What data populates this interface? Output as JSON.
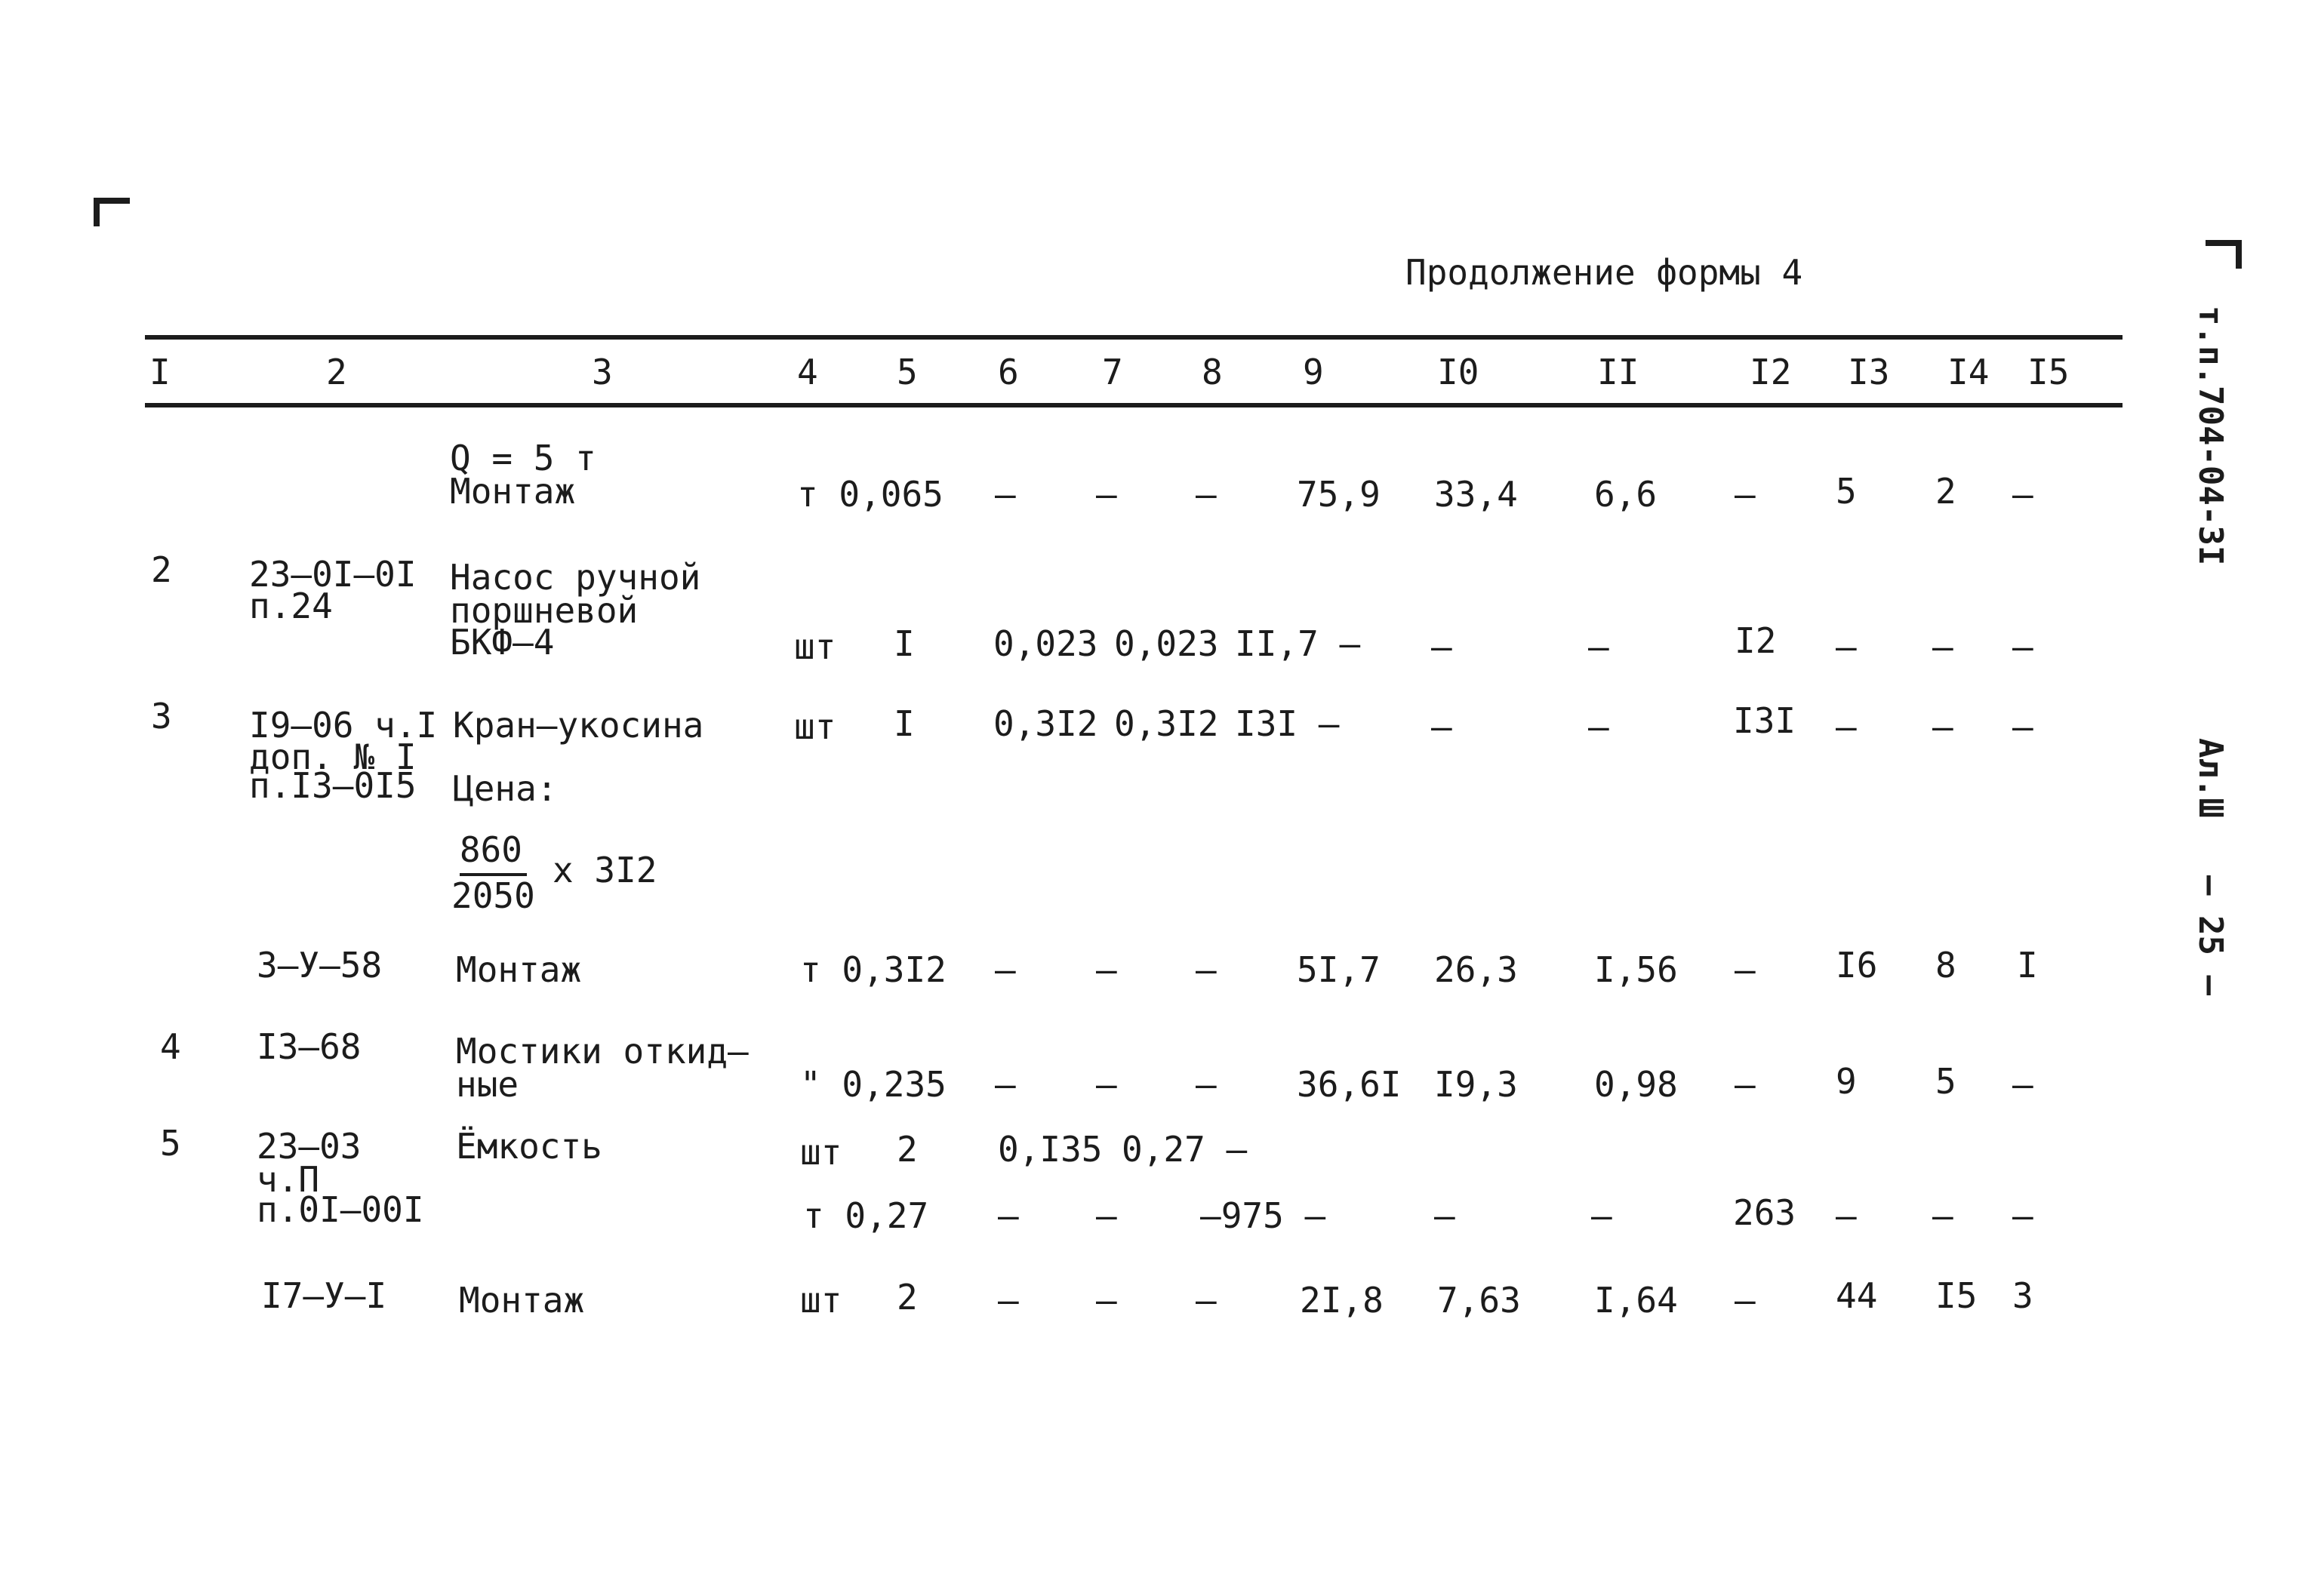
{
  "header": {
    "title": "Продолжение формы 4"
  },
  "side_code": "т.п.704-04-3I",
  "side_album": "Ал.Ш",
  "page_number": "— 25 —",
  "columns": [
    "I",
    "2",
    "3",
    "4",
    "5",
    "6",
    "7",
    "8",
    "9",
    "I0",
    "II",
    "I2",
    "I3",
    "I4",
    "I5"
  ],
  "rows": {
    "r1": {
      "name1": "Q = 5 т",
      "name2": "Монтаж",
      "unit_qty": "т 0,065",
      "c6": "–",
      "c7": "–",
      "c8": "–",
      "c9": "75,9",
      "c10": "33,4",
      "c11": "6,6",
      "c12": "–",
      "c13": "5",
      "c14": "2",
      "c15": "–"
    },
    "r2": {
      "num": "2",
      "ref1": "23–0I–0I",
      "ref2": "п.24",
      "name1": "Насос ручной",
      "name2": "поршневой",
      "name3": "БКФ–4",
      "unit": "шт",
      "qty": "I",
      "c6": "0,023",
      "c7": "0,023",
      "c8": "II,7 –",
      "c10": "–",
      "c11": "–",
      "c12": "I2",
      "c13": "–",
      "c14": "–",
      "c15": "–"
    },
    "r3": {
      "num": "3",
      "ref1": "I9–06 ч.I",
      "ref2": "доп. № I",
      "ref3": "п.I3–0I5",
      "name1": "Кран–укосина",
      "unit": "шт",
      "qty": "I",
      "c6": "0,3I2",
      "c7": "0,3I2",
      "c8": "I3I –",
      "c10": "–",
      "c11": "–",
      "c12": "I3I",
      "c13": "–",
      "c14": "–",
      "c15": "–",
      "price_label": "Цена:",
      "frac_num": "860",
      "frac_den": "2050",
      "frac_mult": "х 3I2"
    },
    "r3b": {
      "ref": "3–У–58",
      "name": "Монтаж",
      "unit_qty": "т 0,3I2",
      "c6": "–",
      "c7": "–",
      "c8": "–",
      "c9": "5I,7",
      "c10": "26,3",
      "c11": "I,56",
      "c12": "–",
      "c13": "I6",
      "c14": "8",
      "c15": "I"
    },
    "r4": {
      "num": "4",
      "ref": "I3–68",
      "name1": "Мостики откид–",
      "name2": "ные",
      "unit_qty": "\" 0,235",
      "c6": "–",
      "c7": "–",
      "c8": "–",
      "c9": "36,6I",
      "c10": "I9,3",
      "c11": "0,98",
      "c12": "–",
      "c13": "9",
      "c14": "5",
      "c15": "–"
    },
    "r5": {
      "num": "5",
      "ref1": "23–03",
      "ref2": "ч.П",
      "ref3": "п.0I–00I",
      "name": "Ёмкость",
      "unit": "шт",
      "qty": "2",
      "c6": "0,I35",
      "c7": "0,27 –",
      "unit_qty2": "т 0,27",
      "b6": "–",
      "b7": "–",
      "b8": "–975 –",
      "b10": "–",
      "b11": "–",
      "b12": "263",
      "b13": "–",
      "b14": "–",
      "b15": "–"
    },
    "r5b": {
      "ref": "I7–У–I",
      "name": "Монтаж",
      "unit": "шт",
      "qty": "2",
      "c6": "–",
      "c7": "–",
      "c8": "–",
      "c9": "2I,8",
      "c10": "7,63",
      "c11": "I,64",
      "c12": "–",
      "c13": "44",
      "c14": "I5",
      "c15": "3"
    }
  }
}
